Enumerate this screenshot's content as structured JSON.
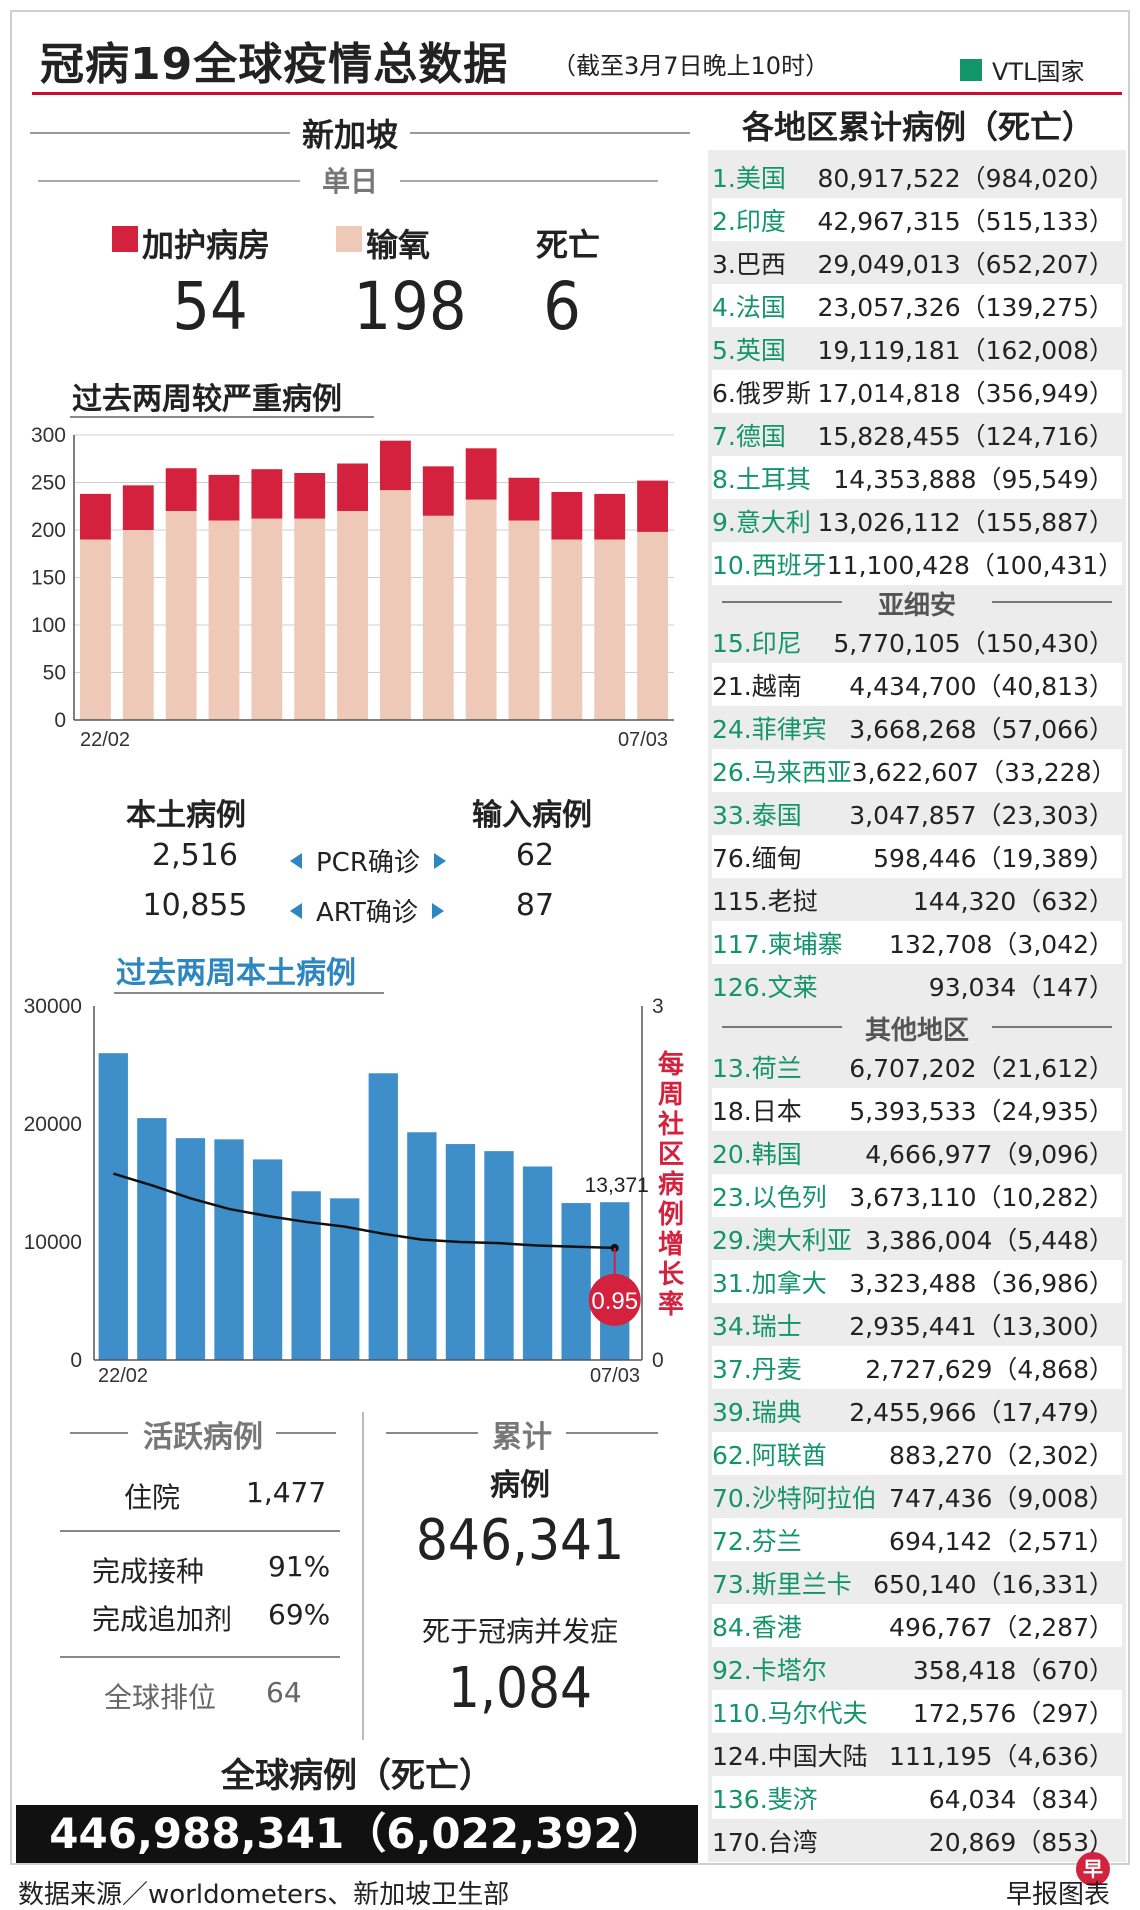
{
  "header": {
    "title": "冠病19全球疫情总数据",
    "subtitle": "（截至3月7日晚上10时）",
    "legend_label": "VTL国家",
    "legend_color": "#13956a"
  },
  "singapore": {
    "title": "新加坡",
    "daily_label": "单日",
    "icu_label": "加护病房",
    "icu_value": "54",
    "oxygen_label": "输氧",
    "oxygen_value": "198",
    "death_label": "死亡",
    "death_value": "6",
    "icu_color": "#d4213d",
    "oxygen_color": "#efc9b8"
  },
  "chart_data": [
    {
      "type": "bar",
      "title": "过去两周较严重病例",
      "stacked": true,
      "categories": [
        "22/02",
        "23/02",
        "24/02",
        "25/02",
        "26/02",
        "27/02",
        "28/02",
        "01/03",
        "02/03",
        "03/03",
        "04/03",
        "05/03",
        "06/03",
        "07/03"
      ],
      "xtick_labels": [
        "22/02",
        "07/03"
      ],
      "series": [
        {
          "name": "输氧",
          "color": "#efc9b8",
          "values": [
            190,
            200,
            220,
            210,
            212,
            212,
            220,
            242,
            215,
            232,
            210,
            190,
            190,
            198
          ]
        },
        {
          "name": "加护病房",
          "color": "#d4213d",
          "values": [
            48,
            47,
            45,
            48,
            52,
            48,
            50,
            52,
            52,
            54,
            45,
            50,
            48,
            54
          ]
        }
      ],
      "ylim": [
        0,
        300
      ],
      "yticks": [
        0,
        50,
        100,
        150,
        200,
        250,
        300
      ],
      "xlabel": "",
      "ylabel": ""
    },
    {
      "type": "bar",
      "title": "过去两周本土病例",
      "categories": [
        "22/02",
        "23/02",
        "24/02",
        "25/02",
        "26/02",
        "27/02",
        "28/02",
        "01/03",
        "02/03",
        "03/03",
        "04/03",
        "05/03",
        "06/03",
        "07/03"
      ],
      "xtick_labels": [
        "22/02",
        "07/03"
      ],
      "values": [
        26000,
        20500,
        18800,
        18700,
        17000,
        14300,
        13700,
        24300,
        19300,
        18300,
        17700,
        16400,
        13300,
        13371
      ],
      "bar_color": "#3e8ec9",
      "ylim": [
        0,
        30000
      ],
      "yticks": [
        0,
        10000,
        20000,
        30000
      ],
      "secondary_series": {
        "name": "每周社区病例增长率",
        "color": "#111111",
        "ylim": [
          0,
          3
        ],
        "yticks": [
          0,
          3
        ],
        "values": [
          1.58,
          1.48,
          1.37,
          1.28,
          1.22,
          1.17,
          1.13,
          1.07,
          1.02,
          1.0,
          0.99,
          0.97,
          0.96,
          0.95
        ]
      },
      "annotations": [
        "13,371",
        "0.95"
      ],
      "secondary_ylabel": "每周社区病例增长率",
      "xlabel": "",
      "ylabel": ""
    }
  ],
  "local_import": {
    "local_label": "本土病例",
    "import_label": "输入病例",
    "pcr_label": "PCR确诊",
    "art_label": "ART确诊",
    "pcr_local": "2,516",
    "pcr_import": "62",
    "art_local": "10,855",
    "art_import": "87"
  },
  "rate_label": "每周社区病例增长率",
  "last_value_label": "13,371",
  "rate_badge": "0.95",
  "active": {
    "title": "活跃病例",
    "hospital_label": "住院",
    "hospital_value": "1,477",
    "vacc_label": "完成接种",
    "vacc_value": "91%",
    "booster_label": "完成追加剂",
    "booster_value": "69%",
    "rank_label": "全球排位",
    "rank_value": "64"
  },
  "cumulative": {
    "title": "累计",
    "cases_label": "病例",
    "cases_value": "846,341",
    "deaths_label": "死于冠病并发症",
    "deaths_value": "1,084"
  },
  "global": {
    "label": "全球病例（死亡）",
    "value": "446,988,341（6,022,392）"
  },
  "regions": {
    "title": "各地区累计病例（死亡）",
    "asean_label": "亚细安",
    "other_label": "其他地区",
    "top10": [
      {
        "name": "1.美国",
        "value": "80,917,522（984,020）",
        "vtl": true
      },
      {
        "name": "2.印度",
        "value": "42,967,315（515,133）",
        "vtl": true
      },
      {
        "name": "3.巴西",
        "value": "29,049,013（652,207）",
        "vtl": false
      },
      {
        "name": "4.法国",
        "value": "23,057,326（139,275）",
        "vtl": true
      },
      {
        "name": "5.英国",
        "value": "19,119,181（162,008）",
        "vtl": true
      },
      {
        "name": "6.俄罗斯",
        "value": "17,014,818（356,949）",
        "vtl": false
      },
      {
        "name": "7.德国",
        "value": "15,828,455（124,716）",
        "vtl": true
      },
      {
        "name": "8.土耳其",
        "value": "14,353,888（95,549）",
        "vtl": true
      },
      {
        "name": "9.意大利",
        "value": "13,026,112（155,887）",
        "vtl": true
      },
      {
        "name": "10.西班牙",
        "value": "11,100,428（100,431）",
        "vtl": true
      }
    ],
    "asean": [
      {
        "name": "15.印尼",
        "value": "5,770,105（150,430）",
        "vtl": true
      },
      {
        "name": "21.越南",
        "value": "4,434,700（40,813）",
        "vtl": false
      },
      {
        "name": "24.菲律宾",
        "value": "3,668,268（57,066）",
        "vtl": true
      },
      {
        "name": "26.马来西亚",
        "value": "3,622,607（33,228）",
        "vtl": true
      },
      {
        "name": "33.泰国",
        "value": "3,047,857（23,303）",
        "vtl": true
      },
      {
        "name": "76.缅甸",
        "value": "598,446（19,389）",
        "vtl": false
      },
      {
        "name": "115.老挝",
        "value": "144,320（632）",
        "vtl": false
      },
      {
        "name": "117.柬埔寨",
        "value": "132,708（3,042）",
        "vtl": true
      },
      {
        "name": "126.文莱",
        "value": "93,034（147）",
        "vtl": true
      }
    ],
    "others": [
      {
        "name": "13.荷兰",
        "value": "6,707,202（21,612）",
        "vtl": true
      },
      {
        "name": "18.日本",
        "value": "5,393,533（24,935）",
        "vtl": false
      },
      {
        "name": "20.韩国",
        "value": "4,666,977（9,096）",
        "vtl": true
      },
      {
        "name": "23.以色列",
        "value": "3,673,110（10,282）",
        "vtl": true
      },
      {
        "name": "29.澳大利亚",
        "value": "3,386,004（5,448）",
        "vtl": true
      },
      {
        "name": "31.加拿大",
        "value": "3,323,488（36,986）",
        "vtl": true
      },
      {
        "name": "34.瑞士",
        "value": "2,935,441（13,300）",
        "vtl": true
      },
      {
        "name": "37.丹麦",
        "value": "2,727,629（4,868）",
        "vtl": true
      },
      {
        "name": "39.瑞典",
        "value": "2,455,966（17,479）",
        "vtl": true
      },
      {
        "name": "62.阿联酋",
        "value": "883,270（2,302）",
        "vtl": true
      },
      {
        "name": "70.沙特阿拉伯",
        "value": "747,436（9,008）",
        "vtl": true
      },
      {
        "name": "72.芬兰",
        "value": "694,142（2,571）",
        "vtl": true
      },
      {
        "name": "73.斯里兰卡",
        "value": "650,140（16,331）",
        "vtl": true
      },
      {
        "name": "84.香港",
        "value": "496,767（2,287）",
        "vtl": true
      },
      {
        "name": "92.卡塔尔",
        "value": "358,418（670）",
        "vtl": true
      },
      {
        "name": "110.马尔代夫",
        "value": "172,576（297）",
        "vtl": true
      },
      {
        "name": "124.中国大陆",
        "value": "111,195（4,636）",
        "vtl": false
      },
      {
        "name": "136.斐济",
        "value": "64,034（834）",
        "vtl": true
      },
      {
        "name": "170.台湾",
        "value": "20,869（853）",
        "vtl": false
      }
    ]
  },
  "footer": {
    "source": "数据来源／worldometers、新加坡卫生部",
    "credit": "早报图表",
    "logo_char": "早"
  }
}
